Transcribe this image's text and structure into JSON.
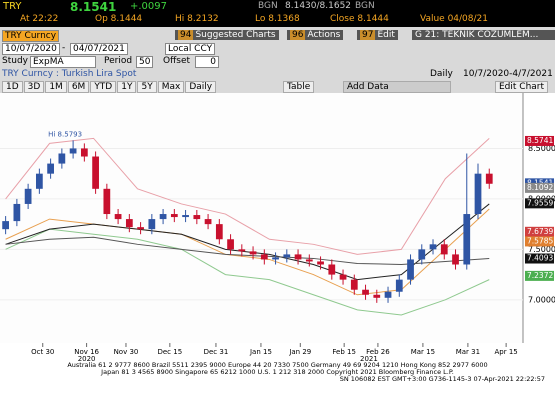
{
  "header": {
    "ticker": "TRY",
    "last": "8.1541",
    "change": "+.0097",
    "src1": "BGN",
    "bidask": "8.1430/8.1652",
    "src2": "BGN",
    "at": "At 22:22",
    "open": "Op 8.1444",
    "hi": "Hi 8.2132",
    "lo": "Lo 8.1368",
    "close": "Close 8.1444",
    "value": "Value 04/08/21"
  },
  "toolbar": {
    "security": "TRY Curncy",
    "btn1_num": "94",
    "btn1": "Suggested Charts",
    "btn2_num": "96",
    "btn2": "Actions",
    "btn3_num": "97",
    "btn3": "Edit",
    "template": "G 21: TEKNIK COZUMLEM...",
    "start": "10/07/2020",
    "dash": "-",
    "end": "04/07/2021",
    "ccy": "Local CCY",
    "study_label": "Study",
    "study": "ExpMA",
    "period_label": "Period",
    "period": "50",
    "offset_label": "Offset",
    "offset": "0",
    "title": "TRY Curncy : Turkish Lira Spot",
    "freq": "Daily",
    "range": "10/7/2020-4/7/2021",
    "buttons": [
      "1D",
      "3D",
      "1M",
      "6M",
      "YTD",
      "1Y",
      "5Y",
      "Max",
      "Daily"
    ],
    "table": "Table",
    "add_data": "Add Data",
    "edit_chart": "Edit Chart"
  },
  "chart_data": {
    "type": "candlestick",
    "up_color": "#2f55a4",
    "down_color": "#c8102e",
    "open": [
      7.7,
      7.78,
      7.95,
      8.1,
      8.25,
      8.35,
      8.45,
      8.5,
      8.42,
      8.1,
      7.85,
      7.8,
      7.72,
      7.7,
      7.8,
      7.85,
      7.82,
      7.84,
      7.8,
      7.75,
      7.6,
      7.5,
      7.48,
      7.45,
      7.4,
      7.42,
      7.45,
      7.4,
      7.38,
      7.35,
      7.25,
      7.2,
      7.1,
      7.05,
      7.02,
      7.08,
      7.2,
      7.4,
      7.5,
      7.55,
      7.45,
      7.35,
      7.85,
      8.25
    ],
    "high": [
      7.83,
      8.0,
      8.15,
      8.3,
      8.4,
      8.5,
      8.58,
      8.55,
      8.47,
      8.15,
      7.9,
      7.85,
      7.77,
      7.85,
      7.9,
      7.9,
      7.89,
      7.89,
      7.85,
      7.8,
      7.65,
      7.55,
      7.53,
      7.5,
      7.47,
      7.5,
      7.5,
      7.45,
      7.43,
      7.4,
      7.3,
      7.25,
      7.15,
      7.1,
      7.13,
      7.25,
      7.45,
      7.55,
      7.6,
      7.6,
      7.5,
      8.45,
      8.35,
      8.3
    ],
    "low": [
      7.65,
      7.73,
      7.9,
      8.05,
      8.2,
      8.3,
      8.4,
      8.37,
      8.05,
      7.8,
      7.75,
      7.67,
      7.65,
      7.65,
      7.75,
      7.77,
      7.77,
      7.75,
      7.7,
      7.55,
      7.45,
      7.43,
      7.4,
      7.35,
      7.35,
      7.37,
      7.35,
      7.33,
      7.3,
      7.2,
      7.15,
      7.05,
      7.0,
      6.97,
      6.97,
      7.03,
      7.15,
      7.35,
      7.45,
      7.4,
      7.3,
      7.3,
      7.8,
      8.1
    ],
    "close": [
      7.78,
      7.95,
      8.1,
      8.25,
      8.35,
      8.45,
      8.5,
      8.42,
      8.1,
      7.85,
      7.8,
      7.72,
      7.7,
      7.8,
      7.85,
      7.82,
      7.84,
      7.8,
      7.75,
      7.6,
      7.5,
      7.48,
      7.45,
      7.4,
      7.42,
      7.45,
      7.4,
      7.38,
      7.35,
      7.25,
      7.2,
      7.1,
      7.05,
      7.02,
      7.08,
      7.2,
      7.4,
      7.5,
      7.55,
      7.45,
      7.35,
      7.85,
      8.25,
      8.15
    ],
    "lines": [
      {
        "color": "#e8a0a8",
        "values": [
          8.0,
          8.55,
          8.6,
          8.1,
          7.95,
          7.85,
          7.6,
          7.55,
          7.45,
          7.5,
          8.2,
          8.6
        ]
      },
      {
        "color": "#8fc98f",
        "values": [
          7.5,
          7.7,
          7.65,
          7.6,
          7.5,
          7.25,
          7.2,
          7.05,
          6.9,
          6.85,
          7.0,
          7.2
        ]
      },
      {
        "color": "#e8a050",
        "values": [
          7.6,
          7.8,
          7.75,
          7.7,
          7.65,
          7.45,
          7.4,
          7.25,
          7.05,
          7.1,
          7.5,
          7.9
        ]
      },
      {
        "color": "#222222",
        "values": [
          7.55,
          7.7,
          7.75,
          7.7,
          7.65,
          7.5,
          7.45,
          7.35,
          7.2,
          7.25,
          7.6,
          7.95
        ]
      },
      {
        "color": "#555555",
        "values": [
          7.55,
          7.6,
          7.62,
          7.55,
          7.5,
          7.45,
          7.43,
          7.41,
          7.36,
          7.35,
          7.38,
          7.41
        ]
      }
    ],
    "ylim": [
      6.8,
      8.98
    ],
    "yticks": [
      {
        "value": 7.0,
        "label": "7.0000"
      },
      {
        "value": 7.5,
        "label": "7.5000"
      },
      {
        "value": 8.0,
        "label": "8.0000"
      },
      {
        "value": 8.5,
        "label": "8.5000"
      }
    ],
    "xticks": [
      {
        "value": 3.3,
        "label": "Oct 30"
      },
      {
        "value": 7.2,
        "label": "Nov 16"
      },
      {
        "value": 10.7,
        "label": "Nov 30"
      },
      {
        "value": 14.6,
        "label": "Dec 15"
      },
      {
        "value": 18.7,
        "label": "Dec 31"
      },
      {
        "value": 22.7,
        "label": "Jan 15"
      },
      {
        "value": 26.2,
        "label": "Jan 29"
      },
      {
        "value": 30.1,
        "label": "Feb 15"
      },
      {
        "value": 33.1,
        "label": "Feb 26"
      },
      {
        "value": 37.1,
        "label": "Mar 15"
      },
      {
        "value": 41.1,
        "label": "Mar 31"
      },
      {
        "value": 44.5,
        "label": "Apr 15"
      }
    ],
    "years": [
      {
        "value": 7.2,
        "label": "2020"
      },
      {
        "value": 32.3,
        "label": "2021"
      }
    ],
    "xlim": [
      -0.5,
      46
    ],
    "annotation": {
      "value": 8.5793,
      "label": "Hi 8.5793",
      "index": 6
    },
    "last_labels": [
      {
        "value": 8.5741,
        "label": "8.5741",
        "color": "#c8102e"
      },
      {
        "value": 8.1541,
        "label": "8.1541",
        "color": "#2f55a4"
      },
      {
        "value": 8.1092,
        "label": "8.1092",
        "color": "#8a8a8a"
      },
      {
        "value": 7.9559,
        "label": "7.9559",
        "color": "#111111"
      },
      {
        "value": 7.6739,
        "label": "7.6739",
        "color": "#d04040"
      },
      {
        "value": 7.5785,
        "label": "7.5785",
        "color": "#e08030"
      },
      {
        "value": 7.4093,
        "label": "7.4093",
        "color": "#111111"
      },
      {
        "value": 7.2372,
        "label": "7.2372",
        "color": "#4caf50"
      }
    ]
  },
  "footer": {
    "line1": "Australia 61 2 9777 8600 Brazil 5511 2395 9000 Europe 44 20 7330 7500 Germany 49 69 9204 1210 Hong Kong 852 2977 6000",
    "line2": "Japan 81 3 4565 8900 Singapore 65 6212 1000 U.S. 1 212 318 2000 Copyright 2021 Bloomberg Finance L.P.",
    "line3": "SN 106082 EST GMT+3:00 G736-1145-3 07-Apr-2021 22:22:57"
  }
}
